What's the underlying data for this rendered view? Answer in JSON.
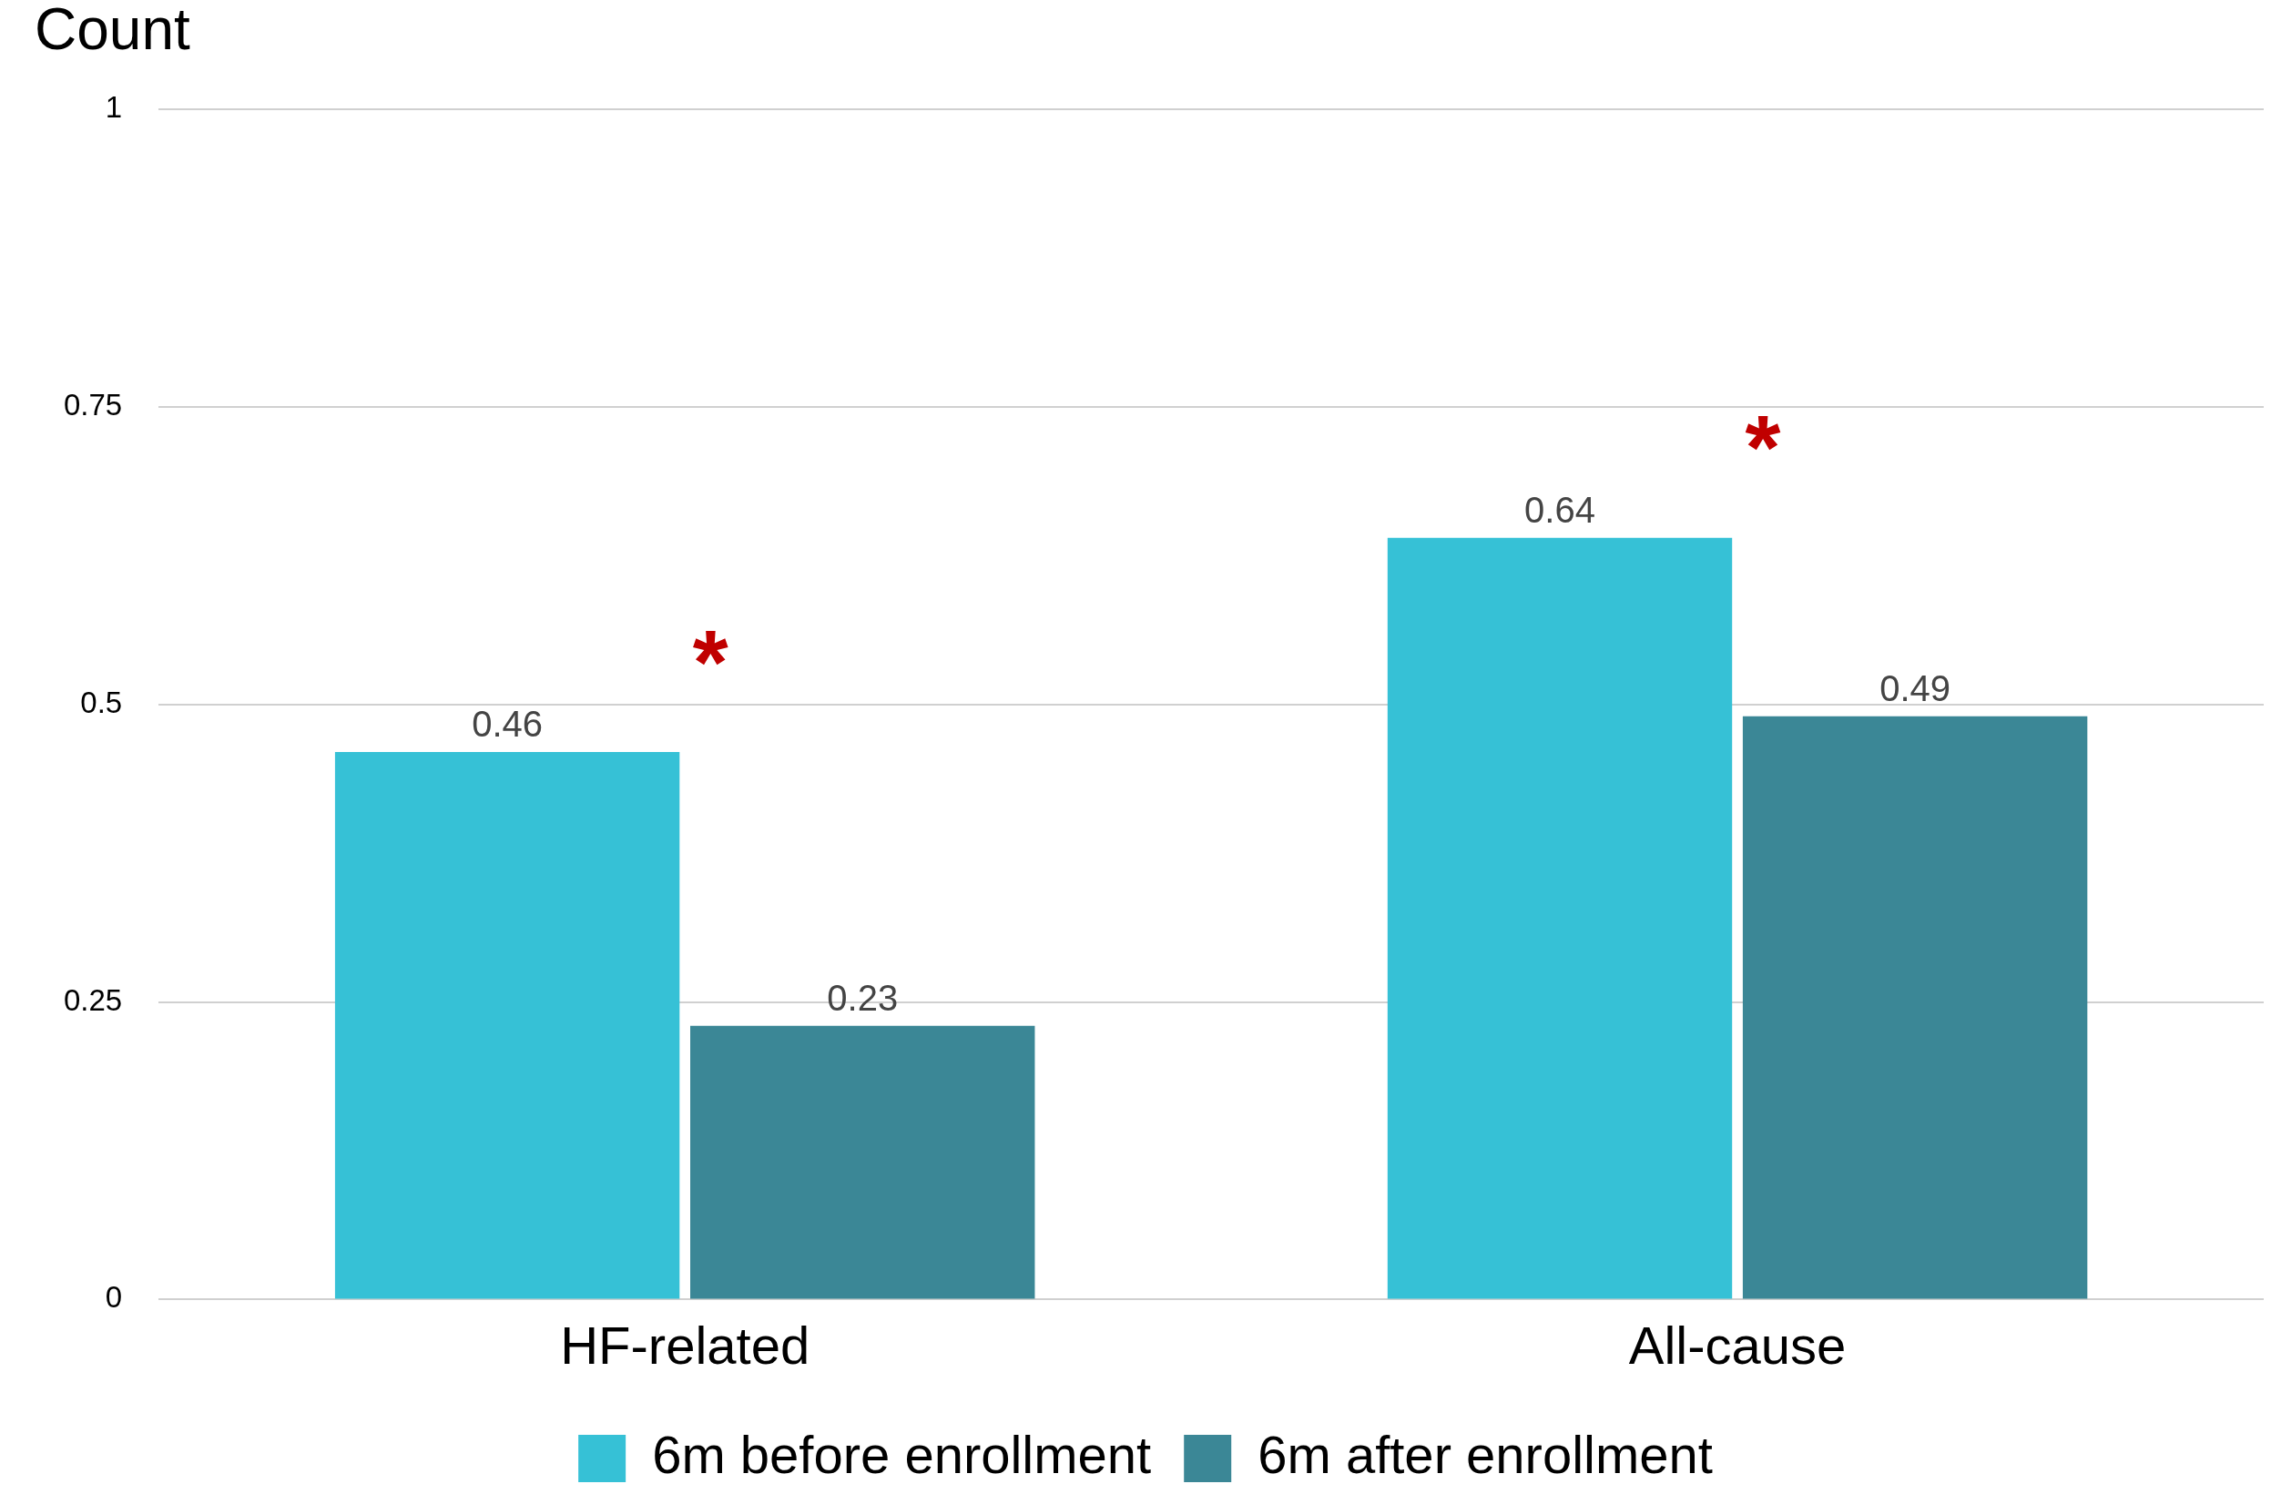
{
  "chart_data": {
    "type": "bar",
    "ylabel": "Count",
    "categories": [
      "HF-related",
      "All-cause"
    ],
    "series": [
      {
        "name": "6m before enrollment",
        "color": "#36c1d6",
        "values": [
          0.46,
          0.64
        ]
      },
      {
        "name": "6m after enrollment",
        "color": "#3b8796",
        "values": [
          0.23,
          0.49
        ]
      }
    ],
    "ylim": [
      0,
      1
    ],
    "yticks": [
      0,
      0.25,
      0.5,
      0.75,
      1
    ],
    "grid": "y",
    "legend": "bottom",
    "data_labels": true,
    "annotations": [
      "*",
      "*"
    ]
  }
}
